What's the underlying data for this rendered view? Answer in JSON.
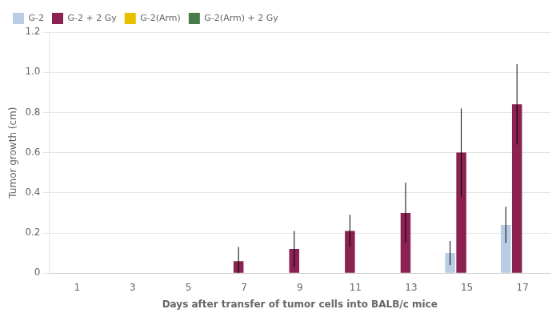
{
  "chart_data": {
    "type": "bar",
    "xlabel": "Days after transfer of tumor cells into BALB/c mice",
    "ylabel": "Tumor growth (cm)",
    "categories": [
      "1",
      "3",
      "5",
      "7",
      "9",
      "11",
      "13",
      "15",
      "17"
    ],
    "series": [
      {
        "name": "G-2",
        "color": "#b8cce4",
        "values": [
          0.0,
          0.0,
          0.0,
          0.0,
          0.0,
          0.0,
          0.0,
          0.1,
          0.24
        ],
        "errors": [
          0.0,
          0.0,
          0.0,
          0.0,
          0.0,
          0.0,
          0.0,
          0.06,
          0.09
        ]
      },
      {
        "name": "G-2 + 2 Gy",
        "color": "#8b2252",
        "values": [
          0.0,
          0.0,
          0.0,
          0.06,
          0.12,
          0.21,
          0.3,
          0.6,
          0.84
        ],
        "errors": [
          0.0,
          0.0,
          0.0,
          0.07,
          0.09,
          0.08,
          0.15,
          0.22,
          0.2
        ]
      },
      {
        "name": "G-2(Arm)",
        "color": "#e8c000",
        "values": [
          0.0,
          0.0,
          0.0,
          0.0,
          0.0,
          0.0,
          0.0,
          0.0,
          0.0
        ],
        "errors": [
          0.0,
          0.0,
          0.0,
          0.0,
          0.0,
          0.0,
          0.0,
          0.0,
          0.0
        ]
      },
      {
        "name": "G-2(Arm) + 2 Gy",
        "color": "#4a7c4a",
        "values": [
          0.0,
          0.0,
          0.0,
          0.0,
          0.0,
          0.0,
          0.0,
          0.0,
          0.0
        ],
        "errors": [
          0.0,
          0.0,
          0.0,
          0.0,
          0.0,
          0.0,
          0.0,
          0.0,
          0.0
        ]
      }
    ],
    "ylim": [
      0,
      1.2
    ],
    "yticks": [
      0,
      0.2,
      0.4,
      0.6,
      0.8,
      {
        "value": 1.0,
        "label": "1.0"
      },
      1.2
    ],
    "grid": true,
    "legend": "upper left"
  }
}
